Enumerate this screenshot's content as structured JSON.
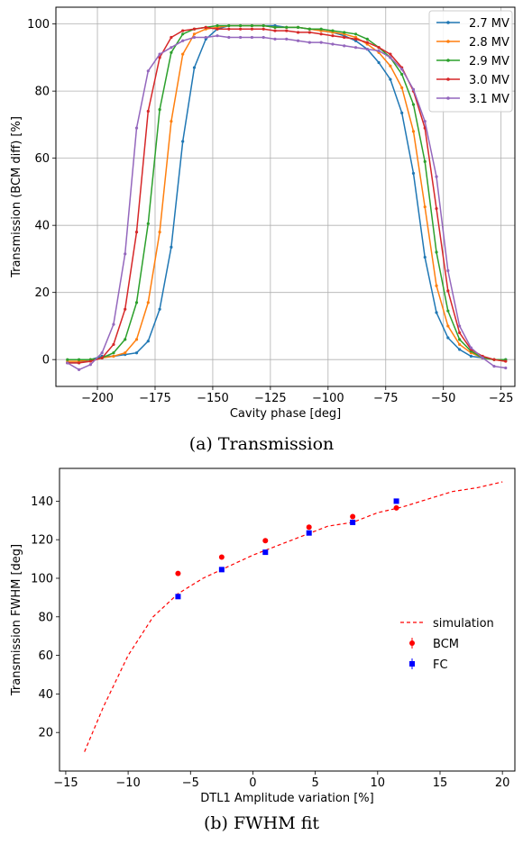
{
  "chart_data": [
    {
      "type": "line",
      "title": "",
      "xlabel": "Cavity phase [deg]",
      "ylabel": "Transmission (BCM diff) [%]",
      "xlim": [
        -218,
        -19
      ],
      "ylim": [
        -8,
        105
      ],
      "xticks": [
        -200,
        -175,
        -150,
        -125,
        -100,
        -75,
        -50,
        -25
      ],
      "yticks": [
        0,
        20,
        40,
        60,
        80,
        100
      ],
      "grid": true,
      "legend": "top-right",
      "series": [
        {
          "name": "2.7 MV",
          "color": "#1f77b4",
          "points": [
            [
              -213,
              -1
            ],
            [
              -208,
              -1
            ],
            [
              -203,
              0
            ],
            [
              -198,
              1
            ],
            [
              -193,
              1
            ],
            [
              -188,
              1.5
            ],
            [
              -183,
              2
            ],
            [
              -178,
              5.5
            ],
            [
              -173,
              15
            ],
            [
              -168,
              33.5
            ],
            [
              -163,
              65
            ],
            [
              -158,
              87
            ],
            [
              -153,
              95.5
            ],
            [
              -148,
              98.5
            ],
            [
              -143,
              99.5
            ],
            [
              -138,
              99.5
            ],
            [
              -133,
              99.5
            ],
            [
              -128,
              99.5
            ],
            [
              -123,
              99.5
            ],
            [
              -118,
              99
            ],
            [
              -113,
              99
            ],
            [
              -108,
              98.5
            ],
            [
              -103,
              98
            ],
            [
              -98,
              97.5
            ],
            [
              -93,
              96.5
            ],
            [
              -88,
              95
            ],
            [
              -83,
              92.5
            ],
            [
              -78,
              88.5
            ],
            [
              -73,
              83.5
            ],
            [
              -68,
              73.5
            ],
            [
              -63,
              55.5
            ],
            [
              -58,
              30.5
            ],
            [
              -53,
              14
            ],
            [
              -48,
              6.5
            ],
            [
              -43,
              3
            ],
            [
              -38,
              1
            ],
            [
              -33,
              0.5
            ],
            [
              -28,
              0
            ],
            [
              -23,
              0
            ]
          ]
        },
        {
          "name": "2.8 MV",
          "color": "#ff7f0e",
          "points": [
            [
              -213,
              -0.5
            ],
            [
              -208,
              -0.5
            ],
            [
              -203,
              0
            ],
            [
              -198,
              0.5
            ],
            [
              -193,
              1
            ],
            [
              -188,
              2
            ],
            [
              -183,
              6
            ],
            [
              -178,
              17
            ],
            [
              -173,
              38
            ],
            [
              -168,
              71
            ],
            [
              -163,
              91
            ],
            [
              -158,
              97
            ],
            [
              -153,
              98.5
            ],
            [
              -148,
              99
            ],
            [
              -143,
              99.5
            ],
            [
              -138,
              99.5
            ],
            [
              -133,
              99.5
            ],
            [
              -128,
              99.5
            ],
            [
              -123,
              99
            ],
            [
              -118,
              99
            ],
            [
              -113,
              99
            ],
            [
              -108,
              98.5
            ],
            [
              -103,
              98
            ],
            [
              -98,
              97.5
            ],
            [
              -93,
              97
            ],
            [
              -88,
              96
            ],
            [
              -83,
              94
            ],
            [
              -78,
              91.5
            ],
            [
              -73,
              87.5
            ],
            [
              -68,
              81
            ],
            [
              -63,
              68
            ],
            [
              -58,
              45.5
            ],
            [
              -53,
              22
            ],
            [
              -48,
              10
            ],
            [
              -43,
              4.5
            ],
            [
              -38,
              2
            ],
            [
              -33,
              0.5
            ],
            [
              -28,
              0
            ],
            [
              -23,
              -0.5
            ]
          ]
        },
        {
          "name": "2.9 MV",
          "color": "#2ca02c",
          "points": [
            [
              -213,
              0
            ],
            [
              -208,
              0
            ],
            [
              -203,
              0
            ],
            [
              -198,
              0.5
            ],
            [
              -193,
              2
            ],
            [
              -188,
              6
            ],
            [
              -183,
              17
            ],
            [
              -178,
              40.5
            ],
            [
              -173,
              74.5
            ],
            [
              -168,
              91.5
            ],
            [
              -163,
              97
            ],
            [
              -158,
              98.5
            ],
            [
              -153,
              99
            ],
            [
              -148,
              99.5
            ],
            [
              -143,
              99.5
            ],
            [
              -138,
              99.5
            ],
            [
              -133,
              99.5
            ],
            [
              -128,
              99.5
            ],
            [
              -123,
              99
            ],
            [
              -118,
              99
            ],
            [
              -113,
              99
            ],
            [
              -108,
              98.5
            ],
            [
              -103,
              98.5
            ],
            [
              -98,
              98
            ],
            [
              -93,
              97.5
            ],
            [
              -88,
              97
            ],
            [
              -83,
              95.5
            ],
            [
              -78,
              93
            ],
            [
              -73,
              90
            ],
            [
              -68,
              85
            ],
            [
              -63,
              76
            ],
            [
              -58,
              59
            ],
            [
              -53,
              32
            ],
            [
              -48,
              14.5
            ],
            [
              -43,
              6
            ],
            [
              -38,
              2.5
            ],
            [
              -33,
              0.5
            ],
            [
              -28,
              0
            ],
            [
              -23,
              0
            ]
          ]
        },
        {
          "name": "3.0 MV",
          "color": "#d62728",
          "points": [
            [
              -213,
              -1
            ],
            [
              -208,
              -1
            ],
            [
              -203,
              -0.5
            ],
            [
              -198,
              0.5
            ],
            [
              -193,
              4.5
            ],
            [
              -188,
              15
            ],
            [
              -183,
              38
            ],
            [
              -178,
              74
            ],
            [
              -173,
              90
            ],
            [
              -168,
              96
            ],
            [
              -163,
              98
            ],
            [
              -158,
              98.5
            ],
            [
              -153,
              99
            ],
            [
              -148,
              98.5
            ],
            [
              -143,
              98.5
            ],
            [
              -138,
              98.5
            ],
            [
              -133,
              98.5
            ],
            [
              -128,
              98.5
            ],
            [
              -123,
              98
            ],
            [
              -118,
              98
            ],
            [
              -113,
              97.5
            ],
            [
              -108,
              97.5
            ],
            [
              -103,
              97
            ],
            [
              -98,
              96.5
            ],
            [
              -93,
              96
            ],
            [
              -88,
              95.5
            ],
            [
              -83,
              94.5
            ],
            [
              -78,
              93
            ],
            [
              -73,
              91
            ],
            [
              -68,
              87
            ],
            [
              -63,
              80
            ],
            [
              -58,
              69
            ],
            [
              -53,
              45
            ],
            [
              -48,
              20.5
            ],
            [
              -43,
              8
            ],
            [
              -38,
              3
            ],
            [
              -33,
              1
            ],
            [
              -28,
              0
            ],
            [
              -23,
              -0.5
            ]
          ]
        },
        {
          "name": "3.1 MV",
          "color": "#9467bd",
          "points": [
            [
              -213,
              -1
            ],
            [
              -208,
              -3
            ],
            [
              -203,
              -1.5
            ],
            [
              -198,
              2
            ],
            [
              -193,
              10.5
            ],
            [
              -188,
              31.5
            ],
            [
              -183,
              69
            ],
            [
              -178,
              86
            ],
            [
              -173,
              91
            ],
            [
              -168,
              93
            ],
            [
              -163,
              95
            ],
            [
              -158,
              96
            ],
            [
              -153,
              96
            ],
            [
              -148,
              96.5
            ],
            [
              -143,
              96
            ],
            [
              -138,
              96
            ],
            [
              -133,
              96
            ],
            [
              -128,
              96
            ],
            [
              -123,
              95.5
            ],
            [
              -118,
              95.5
            ],
            [
              -113,
              95
            ],
            [
              -108,
              94.5
            ],
            [
              -103,
              94.5
            ],
            [
              -98,
              94
            ],
            [
              -93,
              93.5
            ],
            [
              -88,
              93
            ],
            [
              -83,
              92.5
            ],
            [
              -78,
              92
            ],
            [
              -73,
              90
            ],
            [
              -68,
              86.5
            ],
            [
              -63,
              80.5
            ],
            [
              -58,
              71
            ],
            [
              -53,
              54.5
            ],
            [
              -48,
              26.5
            ],
            [
              -43,
              10
            ],
            [
              -38,
              3.5
            ],
            [
              -33,
              0.5
            ],
            [
              -28,
              -2
            ],
            [
              -23,
              -2.5
            ]
          ]
        }
      ]
    },
    {
      "type": "scatter",
      "title": "",
      "xlabel": "DTL1 Amplitude variation [%]",
      "ylabel": "Transmission FWHM [deg]",
      "xlim": [
        -15.5,
        21
      ],
      "ylim": [
        0,
        157
      ],
      "xticks": [
        -15,
        -10,
        -5,
        0,
        5,
        10,
        15,
        20
      ],
      "yticks": [
        20,
        40,
        60,
        80,
        100,
        120,
        140
      ],
      "grid": false,
      "legend": "center-right",
      "series": [
        {
          "name": "simulation",
          "color": "#ff0000",
          "style": "dashed-line",
          "points": [
            [
              -13.5,
              10
            ],
            [
              -12,
              33
            ],
            [
              -10,
              60
            ],
            [
              -8,
              80
            ],
            [
              -6,
              92
            ],
            [
              -4,
              100
            ],
            [
              -2,
              106
            ],
            [
              0,
              112
            ],
            [
              2,
              117
            ],
            [
              4,
              122
            ],
            [
              6,
              127
            ],
            [
              8,
              129
            ],
            [
              10,
              134
            ],
            [
              12,
              137
            ],
            [
              14,
              141
            ],
            [
              16,
              145
            ],
            [
              18,
              147
            ],
            [
              20,
              150
            ]
          ]
        },
        {
          "name": "BCM",
          "color": "#ff0000",
          "style": "dot",
          "points": [
            [
              -6,
              102.5
            ],
            [
              -2.5,
              111
            ],
            [
              1,
              119.5
            ],
            [
              4.5,
              126.5
            ],
            [
              8,
              132
            ],
            [
              11.5,
              136.5
            ]
          ]
        },
        {
          "name": "FC",
          "color": "#0000ff",
          "style": "square",
          "points": [
            [
              -6,
              90.5
            ],
            [
              -2.5,
              104.5
            ],
            [
              1,
              113.5
            ],
            [
              4.5,
              123.5
            ],
            [
              8,
              129
            ],
            [
              11.5,
              140
            ]
          ]
        }
      ]
    }
  ],
  "captions": {
    "a": "(a) Transmission",
    "b": "(b) FWHM fit"
  }
}
